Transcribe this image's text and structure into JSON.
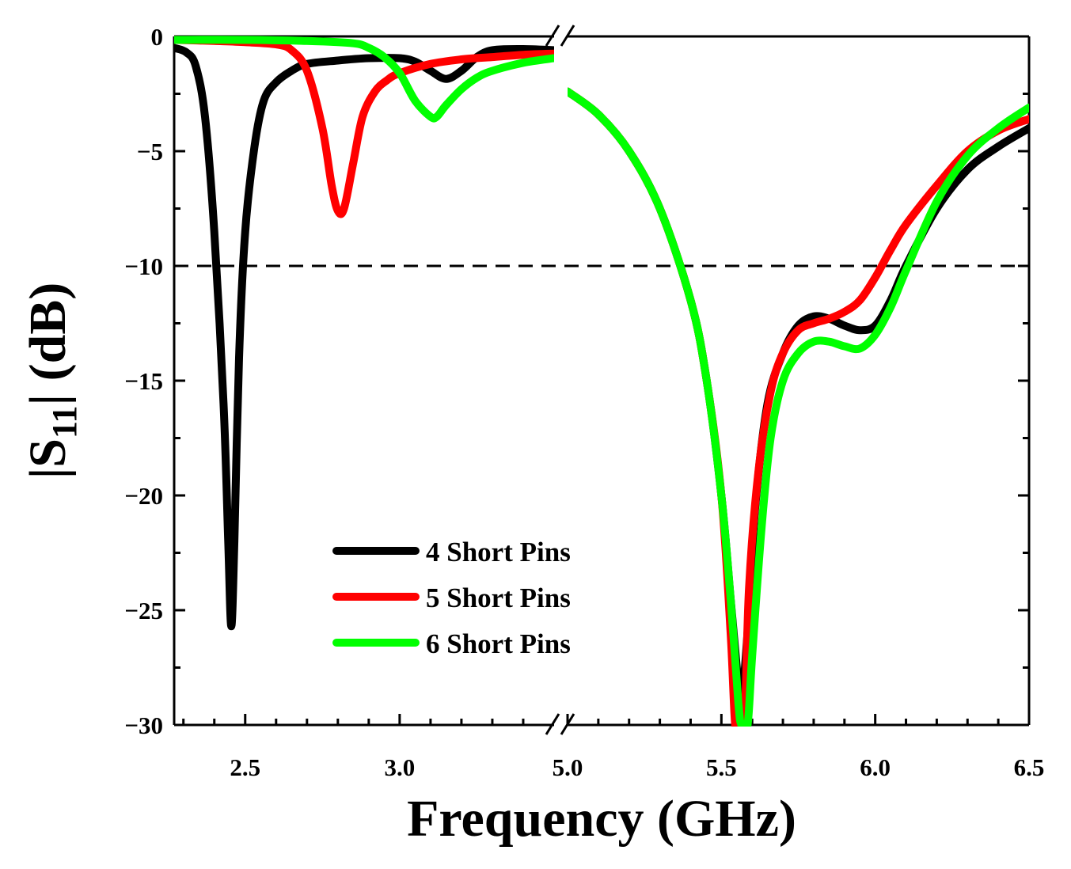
{
  "chart_data": {
    "type": "line",
    "title": "",
    "xlabel": "Frequency (GHz)",
    "ylabel_main": "|S",
    "ylabel_sub": "11",
    "ylabel_tail": "| (dB)",
    "ylim": [
      -30,
      0
    ],
    "yticks": [
      0,
      -5,
      -10,
      -15,
      -20,
      -25,
      -30
    ],
    "ytick_labels": [
      "0",
      "−5",
      "−10",
      "−15",
      "−20",
      "−25",
      "−30"
    ],
    "x_segments": [
      {
        "xlim": [
          2.27,
          3.5
        ],
        "xticks": [
          2.5,
          3.0
        ],
        "xtick_labels": [
          "2.5",
          "3.0"
        ]
      },
      {
        "xlim": [
          5.0,
          6.5
        ],
        "xticks": [
          5.0,
          5.5,
          6.0,
          6.5
        ],
        "xtick_labels": [
          "5.0",
          "5.5",
          "6.0",
          "6.5"
        ]
      }
    ],
    "reference_line": {
      "y": -10,
      "style": "dashed",
      "color": "#000000"
    },
    "legend_position": "lower-center",
    "series": [
      {
        "name": "4 Short Pins",
        "color": "#000000",
        "segments": [
          [
            [
              2.27,
              -0.5
            ],
            [
              2.31,
              -0.7
            ],
            [
              2.34,
              -1.3
            ],
            [
              2.37,
              -3.5
            ],
            [
              2.4,
              -8.5
            ],
            [
              2.43,
              -16.0
            ],
            [
              2.445,
              -22.0
            ],
            [
              2.455,
              -25.7
            ],
            [
              2.465,
              -22.0
            ],
            [
              2.48,
              -14.0
            ],
            [
              2.5,
              -8.5
            ],
            [
              2.53,
              -4.8
            ],
            [
              2.56,
              -2.8
            ],
            [
              2.6,
              -2.0
            ],
            [
              2.65,
              -1.5
            ],
            [
              2.7,
              -1.2
            ],
            [
              2.8,
              -1.05
            ],
            [
              2.9,
              -0.95
            ],
            [
              3.0,
              -0.95
            ],
            [
              3.05,
              -1.1
            ],
            [
              3.1,
              -1.5
            ],
            [
              3.15,
              -1.85
            ],
            [
              3.2,
              -1.5
            ],
            [
              3.25,
              -0.9
            ],
            [
              3.3,
              -0.6
            ],
            [
              3.4,
              -0.55
            ],
            [
              3.5,
              -0.6
            ]
          ],
          [
            [
              5.0,
              -2.4
            ],
            [
              5.1,
              -3.4
            ],
            [
              5.2,
              -5.0
            ],
            [
              5.3,
              -7.5
            ],
            [
              5.4,
              -11.5
            ],
            [
              5.45,
              -14.8
            ],
            [
              5.5,
              -20.0
            ],
            [
              5.53,
              -24.5
            ],
            [
              5.55,
              -27.5
            ],
            [
              5.56,
              -28.8
            ],
            [
              5.57,
              -28.5
            ],
            [
              5.59,
              -25.0
            ],
            [
              5.61,
              -20.5
            ],
            [
              5.65,
              -16.0
            ],
            [
              5.7,
              -13.8
            ],
            [
              5.75,
              -12.6
            ],
            [
              5.8,
              -12.2
            ],
            [
              5.85,
              -12.3
            ],
            [
              5.9,
              -12.6
            ],
            [
              5.95,
              -12.8
            ],
            [
              6.0,
              -12.6
            ],
            [
              6.05,
              -11.5
            ],
            [
              6.1,
              -10.0
            ],
            [
              6.2,
              -7.5
            ],
            [
              6.3,
              -5.8
            ],
            [
              6.4,
              -4.8
            ],
            [
              6.5,
              -4.0
            ]
          ]
        ]
      },
      {
        "name": "5 Short Pins",
        "color": "#ff0000",
        "segments": [
          [
            [
              2.27,
              -0.15
            ],
            [
              2.4,
              -0.2
            ],
            [
              2.5,
              -0.25
            ],
            [
              2.6,
              -0.35
            ],
            [
              2.65,
              -0.6
            ],
            [
              2.7,
              -1.5
            ],
            [
              2.75,
              -4.0
            ],
            [
              2.78,
              -6.5
            ],
            [
              2.8,
              -7.6
            ],
            [
              2.82,
              -7.5
            ],
            [
              2.85,
              -5.5
            ],
            [
              2.88,
              -3.5
            ],
            [
              2.92,
              -2.4
            ],
            [
              2.96,
              -1.9
            ],
            [
              3.0,
              -1.6
            ],
            [
              3.1,
              -1.2
            ],
            [
              3.2,
              -1.0
            ],
            [
              3.3,
              -0.9
            ],
            [
              3.4,
              -0.8
            ],
            [
              3.5,
              -0.75
            ]
          ],
          [
            [
              5.0,
              -2.4
            ],
            [
              5.1,
              -3.4
            ],
            [
              5.2,
              -5.0
            ],
            [
              5.3,
              -7.5
            ],
            [
              5.4,
              -11.5
            ],
            [
              5.45,
              -14.8
            ],
            [
              5.5,
              -20.0
            ],
            [
              5.53,
              -26.0
            ],
            [
              5.545,
              -30.0
            ],
            [
              5.56,
              -30.0
            ],
            [
              5.575,
              -30.0
            ],
            [
              5.59,
              -24.0
            ],
            [
              5.62,
              -19.0
            ],
            [
              5.66,
              -15.5
            ],
            [
              5.7,
              -13.8
            ],
            [
              5.75,
              -12.8
            ],
            [
              5.8,
              -12.5
            ],
            [
              5.85,
              -12.3
            ],
            [
              5.9,
              -12.0
            ],
            [
              5.95,
              -11.5
            ],
            [
              6.0,
              -10.5
            ],
            [
              6.05,
              -9.3
            ],
            [
              6.1,
              -8.2
            ],
            [
              6.2,
              -6.5
            ],
            [
              6.3,
              -5.0
            ],
            [
              6.4,
              -4.1
            ],
            [
              6.5,
              -3.6
            ]
          ]
        ]
      },
      {
        "name": "6 Short Pins",
        "color": "#00ff00",
        "segments": [
          [
            [
              2.27,
              -0.15
            ],
            [
              2.5,
              -0.15
            ],
            [
              2.7,
              -0.2
            ],
            [
              2.85,
              -0.3
            ],
            [
              2.9,
              -0.5
            ],
            [
              2.95,
              -0.9
            ],
            [
              3.0,
              -1.6
            ],
            [
              3.05,
              -2.8
            ],
            [
              3.1,
              -3.5
            ],
            [
              3.12,
              -3.5
            ],
            [
              3.15,
              -3.0
            ],
            [
              3.2,
              -2.3
            ],
            [
              3.25,
              -1.8
            ],
            [
              3.3,
              -1.5
            ],
            [
              3.4,
              -1.15
            ],
            [
              3.5,
              -0.95
            ]
          ],
          [
            [
              5.0,
              -2.4
            ],
            [
              5.1,
              -3.4
            ],
            [
              5.2,
              -5.0
            ],
            [
              5.3,
              -7.5
            ],
            [
              5.4,
              -11.5
            ],
            [
              5.45,
              -14.8
            ],
            [
              5.5,
              -20.0
            ],
            [
              5.53,
              -24.5
            ],
            [
              5.555,
              -29.0
            ],
            [
              5.565,
              -30.0
            ],
            [
              5.585,
              -30.0
            ],
            [
              5.6,
              -27.0
            ],
            [
              5.63,
              -21.5
            ],
            [
              5.66,
              -17.5
            ],
            [
              5.7,
              -15.0
            ],
            [
              5.75,
              -13.8
            ],
            [
              5.8,
              -13.3
            ],
            [
              5.85,
              -13.3
            ],
            [
              5.9,
              -13.5
            ],
            [
              5.95,
              -13.6
            ],
            [
              6.0,
              -13.0
            ],
            [
              6.05,
              -11.8
            ],
            [
              6.1,
              -10.2
            ],
            [
              6.2,
              -7.2
            ],
            [
              6.3,
              -5.2
            ],
            [
              6.4,
              -4.0
            ],
            [
              6.5,
              -3.1
            ]
          ]
        ]
      }
    ]
  }
}
